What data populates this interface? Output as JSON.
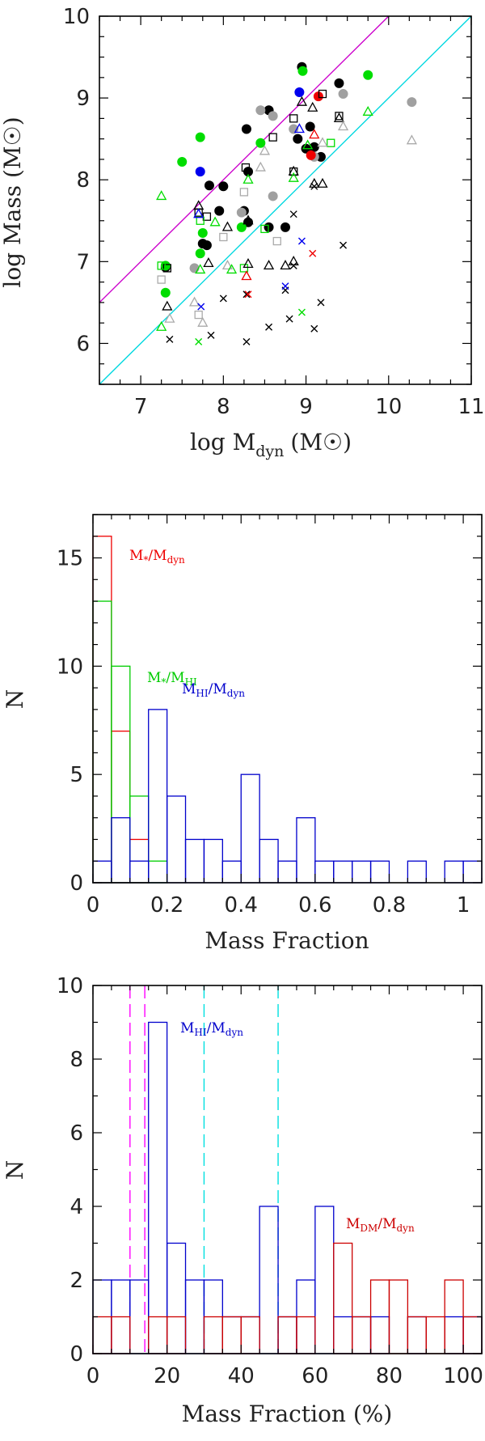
{
  "chart_data": [
    {
      "type": "scatter",
      "xlabel": "log M",
      "xlabel_sub": "dyn",
      "xlabel_unit": "(M☉)",
      "ylabel": "log Mass (M☉)",
      "xlim": [
        6.5,
        11
      ],
      "ylim": [
        5.5,
        10
      ],
      "xticks": [
        "7",
        "8",
        "9",
        "10",
        "11"
      ],
      "yticks": [
        "6",
        "7",
        "8",
        "9",
        "10"
      ],
      "lines": [
        {
          "name": "1:1 relation",
          "color": "#cc00cc",
          "points": [
            [
              6.5,
              6.5
            ],
            [
              10,
              10
            ]
          ]
        },
        {
          "name": "0.1 relation",
          "color": "#00d8e0",
          "points": [
            [
              6.5,
              5.5
            ],
            [
              11,
              10
            ]
          ]
        }
      ],
      "series": [
        {
          "name": "black filled circles",
          "marker": "circle",
          "color": "#000000",
          "filled": true,
          "points": [
            [
              7.3,
              6.93
            ],
            [
              7.83,
              7.93
            ],
            [
              7.95,
              7.62
            ],
            [
              7.8,
              7.2
            ],
            [
              8.0,
              7.92
            ],
            [
              8.28,
              8.62
            ],
            [
              8.25,
              7.62
            ],
            [
              8.3,
              7.48
            ],
            [
              8.3,
              8.1
            ],
            [
              8.55,
              7.42
            ],
            [
              8.55,
              8.85
            ],
            [
              8.75,
              7.42
            ],
            [
              8.9,
              8.5
            ],
            [
              8.95,
              9.38
            ],
            [
              9.05,
              8.65
            ],
            [
              9.1,
              8.4
            ],
            [
              9.18,
              8.28
            ],
            [
              9.4,
              9.18
            ],
            [
              7.75,
              7.22
            ],
            [
              9.0,
              8.38
            ]
          ]
        },
        {
          "name": "green filled circles",
          "marker": "circle",
          "color": "#00dd00",
          "filled": true,
          "points": [
            [
              7.3,
              6.95
            ],
            [
              7.3,
              6.62
            ],
            [
              7.5,
              8.22
            ],
            [
              7.72,
              8.52
            ],
            [
              7.72,
              7.1
            ],
            [
              7.75,
              7.35
            ],
            [
              8.22,
              7.42
            ],
            [
              8.45,
              8.45
            ],
            [
              8.96,
              9.33
            ],
            [
              9.75,
              9.28
            ]
          ]
        },
        {
          "name": "gray filled circles",
          "marker": "circle",
          "color": "#a0a0a0",
          "filled": true,
          "points": [
            [
              7.65,
              6.92
            ],
            [
              8.22,
              7.6
            ],
            [
              8.45,
              8.85
            ],
            [
              8.6,
              8.78
            ],
            [
              8.6,
              7.8
            ],
            [
              8.85,
              8.62
            ],
            [
              9.1,
              8.28
            ],
            [
              9.45,
              9.05
            ],
            [
              10.28,
              8.95
            ]
          ]
        },
        {
          "name": "blue filled circles",
          "marker": "circle",
          "color": "#0000ee",
          "filled": true,
          "points": [
            [
              7.72,
              8.1
            ],
            [
              8.92,
              9.07
            ]
          ]
        },
        {
          "name": "red filled circles",
          "marker": "circle",
          "color": "#ee0000",
          "filled": true,
          "points": [
            [
              9.06,
              8.3
            ],
            [
              9.15,
              9.02
            ]
          ]
        },
        {
          "name": "black open squares",
          "marker": "square",
          "color": "#000000",
          "filled": false,
          "points": [
            [
              7.32,
              6.92
            ],
            [
              7.7,
              7.6
            ],
            [
              7.8,
              7.55
            ],
            [
              8.27,
              8.15
            ],
            [
              8.6,
              8.52
            ],
            [
              8.85,
              8.75
            ],
            [
              8.85,
              8.1
            ],
            [
              9.2,
              9.05
            ],
            [
              9.4,
              8.78
            ]
          ]
        },
        {
          "name": "gray open squares",
          "marker": "square",
          "color": "#aaaaaa",
          "filled": false,
          "points": [
            [
              7.25,
              6.78
            ],
            [
              7.7,
              6.35
            ],
            [
              8.0,
              7.3
            ],
            [
              8.25,
              7.85
            ],
            [
              8.65,
              7.25
            ]
          ]
        },
        {
          "name": "green open squares",
          "marker": "square",
          "color": "#00dd00",
          "filled": false,
          "points": [
            [
              7.25,
              6.95
            ],
            [
              7.72,
              7.5
            ],
            [
              8.25,
              6.92
            ],
            [
              8.5,
              7.4
            ],
            [
              9.3,
              8.45
            ]
          ]
        },
        {
          "name": "black open triangles",
          "marker": "triangle",
          "color": "#000000",
          "filled": false,
          "points": [
            [
              7.32,
              6.45
            ],
            [
              7.7,
              7.68
            ],
            [
              7.82,
              6.98
            ],
            [
              8.05,
              7.42
            ],
            [
              8.3,
              7.5
            ],
            [
              8.3,
              6.97
            ],
            [
              8.55,
              6.95
            ],
            [
              8.75,
              6.95
            ],
            [
              8.85,
              7.0
            ],
            [
              8.85,
              8.1
            ],
            [
              8.95,
              8.95
            ],
            [
              9.1,
              7.95
            ],
            [
              9.2,
              7.95
            ],
            [
              9.4,
              8.75
            ],
            [
              9.08,
              8.88
            ]
          ]
        },
        {
          "name": "gray open triangles",
          "marker": "triangle",
          "color": "#aaaaaa",
          "filled": false,
          "points": [
            [
              7.35,
              6.3
            ],
            [
              7.65,
              6.5
            ],
            [
              7.75,
              6.25
            ],
            [
              8.05,
              6.95
            ],
            [
              8.45,
              8.15
            ],
            [
              8.5,
              8.35
            ],
            [
              9.45,
              8.65
            ],
            [
              10.28,
              8.48
            ],
            [
              9.2,
              8.45
            ]
          ]
        },
        {
          "name": "green open triangles",
          "marker": "triangle",
          "color": "#00dd00",
          "filled": false,
          "points": [
            [
              7.25,
              6.2
            ],
            [
              7.25,
              7.8
            ],
            [
              7.72,
              6.9
            ],
            [
              7.9,
              7.48
            ],
            [
              8.1,
              6.9
            ],
            [
              8.3,
              8.0
            ],
            [
              8.85,
              8.02
            ],
            [
              9.02,
              8.42
            ],
            [
              9.75,
              8.83
            ]
          ]
        },
        {
          "name": "blue open triangles",
          "marker": "triangle",
          "color": "#0000ee",
          "filled": false,
          "points": [
            [
              7.7,
              7.58
            ],
            [
              8.92,
              8.62
            ]
          ]
        },
        {
          "name": "red open triangles",
          "marker": "triangle",
          "color": "#ee0000",
          "filled": false,
          "points": [
            [
              8.28,
              6.82
            ],
            [
              9.1,
              8.55
            ]
          ]
        },
        {
          "name": "black crosses",
          "marker": "cross",
          "color": "#000000",
          "filled": false,
          "points": [
            [
              7.35,
              6.05
            ],
            [
              7.85,
              6.1
            ],
            [
              8.0,
              6.55
            ],
            [
              8.28,
              6.02
            ],
            [
              8.28,
              6.6
            ],
            [
              8.55,
              6.2
            ],
            [
              8.8,
              6.3
            ],
            [
              8.75,
              6.65
            ],
            [
              8.85,
              6.95
            ],
            [
              8.85,
              7.58
            ],
            [
              9.1,
              6.18
            ],
            [
              9.18,
              6.5
            ],
            [
              9.45,
              7.2
            ],
            [
              9.1,
              7.92
            ]
          ]
        },
        {
          "name": "green crosses",
          "marker": "cross",
          "color": "#00dd00",
          "filled": false,
          "points": [
            [
              7.7,
              6.02
            ],
            [
              8.95,
              6.38
            ]
          ]
        },
        {
          "name": "blue crosses",
          "marker": "cross",
          "color": "#0000ee",
          "filled": false,
          "points": [
            [
              7.73,
              6.45
            ],
            [
              8.75,
              6.7
            ],
            [
              8.95,
              7.25
            ]
          ]
        },
        {
          "name": "red crosses",
          "marker": "cross",
          "color": "#ee0000",
          "filled": false,
          "points": [
            [
              8.3,
              6.6
            ],
            [
              9.08,
              7.1
            ]
          ]
        }
      ]
    },
    {
      "type": "bar",
      "style": "step-histogram",
      "xlabel": "Mass Fraction",
      "ylabel": "N",
      "xlim": [
        0,
        1.05
      ],
      "ylim": [
        0,
        17
      ],
      "xticks": [
        "0",
        "0.2",
        "0.4",
        "0.6",
        "0.8",
        "1"
      ],
      "yticks": [
        "0",
        "5",
        "10",
        "15"
      ],
      "bin_width": 0.05,
      "series": [
        {
          "name": "M*/Mdyn",
          "color": "#ee0000",
          "label": "M",
          "label_sub": "*",
          "label_tail": "/M",
          "label_sub2": "dyn",
          "values": [
            16,
            7,
            2,
            0,
            0,
            0,
            0,
            0,
            0,
            0,
            0,
            0,
            0,
            0,
            0,
            0,
            0,
            0,
            0,
            0,
            0
          ]
        },
        {
          "name": "M*/MHI",
          "color": "#00cc00",
          "label": "M",
          "label_sub": "*",
          "label_tail": "/M",
          "label_sub2": "HI",
          "values": [
            13,
            10,
            4,
            1,
            0,
            0,
            0,
            0,
            0,
            0,
            0,
            0,
            0,
            0,
            0,
            0,
            0,
            0,
            0,
            0,
            0
          ]
        },
        {
          "name": "MHI/Mdyn",
          "color": "#0000cc",
          "label": "M",
          "label_sub": "HI",
          "label_tail": "/M",
          "label_sub2": "dyn",
          "values": [
            1,
            3,
            1,
            8,
            4,
            2,
            2,
            1,
            5,
            2,
            1,
            3,
            1,
            1,
            1,
            1,
            0,
            1,
            0,
            1,
            1
          ]
        }
      ]
    },
    {
      "type": "bar",
      "style": "step-histogram",
      "xlabel": "Mass Fraction (%)",
      "ylabel": "N",
      "xlim": [
        0,
        105
      ],
      "ylim": [
        0,
        10
      ],
      "xticks": [
        "0",
        "20",
        "40",
        "60",
        "80",
        "100"
      ],
      "yticks": [
        "0",
        "2",
        "4",
        "6",
        "8",
        "10"
      ],
      "bin_width": 5,
      "series": [
        {
          "name": "MHI/Mdyn",
          "color": "#0000cc",
          "label": "M",
          "label_sub": "HI",
          "label_tail": "/M",
          "label_sub2": "dyn",
          "values": [
            2,
            2,
            2,
            9,
            3,
            2,
            2,
            1,
            1,
            4,
            1,
            2,
            4,
            1,
            1,
            1,
            0,
            1,
            0,
            1,
            1
          ]
        },
        {
          "name": "MDM/Mdyn",
          "color": "#cc0000",
          "label": "M",
          "label_sub": "DM",
          "label_tail": "/M",
          "label_sub2": "dyn",
          "values": [
            1,
            1,
            0,
            1,
            1,
            0,
            1,
            1,
            1,
            0,
            1,
            1,
            0,
            3,
            1,
            2,
            2,
            1,
            1,
            2,
            1
          ]
        }
      ],
      "vlines": [
        {
          "x": 10,
          "color": "#ff00ff"
        },
        {
          "x": 14,
          "color": "#ff00ff"
        },
        {
          "x": 30,
          "color": "#00e0e0"
        },
        {
          "x": 50,
          "color": "#00e0e0"
        }
      ]
    }
  ]
}
